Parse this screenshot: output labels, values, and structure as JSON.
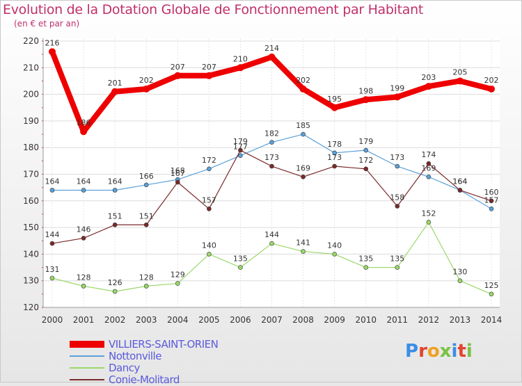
{
  "title": "Evolution de la Dotation Globale de Fonctionnement par Habitant",
  "subtitle": "(en € et par an)",
  "logo": {
    "text": "Proxiti",
    "colors": [
      "#3a8ee6",
      "#e2442f",
      "#f0a020",
      "#7ac143",
      "#3a8ee6",
      "#e2442f",
      "#7ac143"
    ]
  },
  "chart_data": {
    "type": "line",
    "x": [
      2000,
      2001,
      2002,
      2003,
      2004,
      2005,
      2006,
      2007,
      2008,
      2009,
      2010,
      2011,
      2012,
      2013,
      2014
    ],
    "ylim": [
      120,
      220
    ],
    "yticks": [
      120,
      130,
      140,
      150,
      160,
      170,
      180,
      190,
      200,
      210,
      220
    ],
    "grid": true,
    "legend_position": "bottom-left",
    "series": [
      {
        "name": "VILLIERS-SAINT-ORIEN",
        "color": "#ee0000",
        "width": 8,
        "values": [
          216,
          186,
          201,
          202,
          207,
          207,
          210,
          214,
          202,
          195,
          198,
          199,
          203,
          205,
          202
        ]
      },
      {
        "name": "Nottonville",
        "color": "#5aa0d8",
        "width": 1.2,
        "values": [
          164,
          164,
          164,
          166,
          168,
          172,
          177,
          182,
          185,
          178,
          179,
          173,
          169,
          164,
          157
        ]
      },
      {
        "name": "Dancy",
        "color": "#9ad86a",
        "width": 1.2,
        "values": [
          131,
          128,
          126,
          128,
          129,
          140,
          135,
          144,
          141,
          140,
          135,
          135,
          152,
          130,
          125
        ]
      },
      {
        "name": "Conie-Molitard",
        "color": "#7a2a2a",
        "width": 1.2,
        "values": [
          144,
          146,
          151,
          151,
          167,
          157,
          179,
          173,
          169,
          173,
          172,
          158,
          174,
          164,
          160
        ]
      }
    ]
  }
}
